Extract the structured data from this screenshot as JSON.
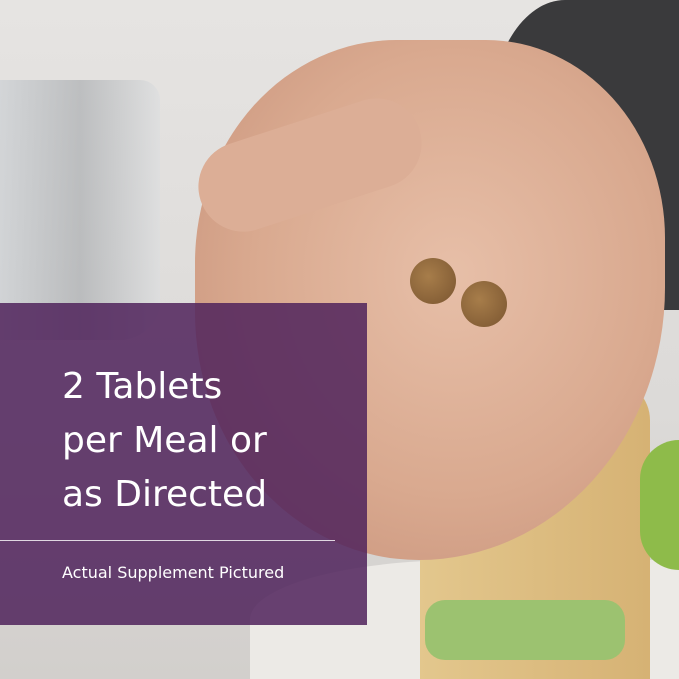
{
  "headline": {
    "lines": [
      "2 Tablets",
      "per Meal or",
      "as Directed"
    ]
  },
  "caption": "Actual Supplement Pictured",
  "colors": {
    "overlay": "#50245c",
    "text": "#ffffff"
  }
}
